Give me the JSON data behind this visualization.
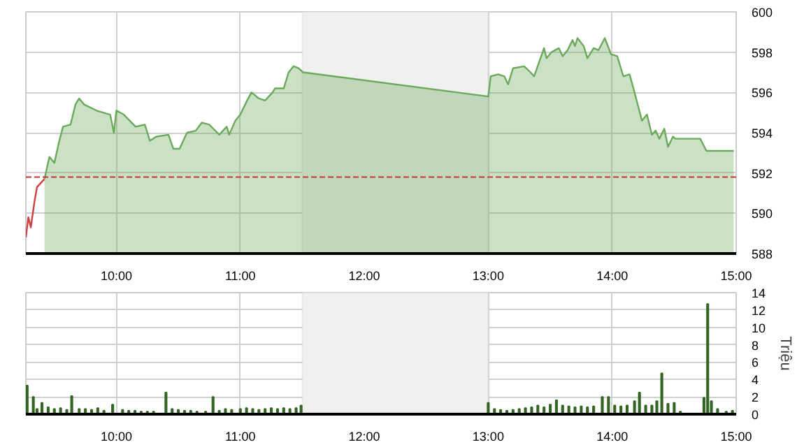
{
  "chart_data": [
    {
      "type": "area",
      "xlim": [
        9.27,
        15.0
      ],
      "ylim": [
        588,
        600
      ],
      "xticks": [
        {
          "value": 10,
          "label": "10:00"
        },
        {
          "value": 11,
          "label": "11:00"
        },
        {
          "value": 12,
          "label": "12:00"
        },
        {
          "value": 13,
          "label": "13:00"
        },
        {
          "value": 14,
          "label": "14:00"
        },
        {
          "value": 15,
          "label": "15:00"
        }
      ],
      "yticks": [
        588,
        590,
        592,
        594,
        596,
        598,
        600
      ],
      "grid": true,
      "bands": [
        {
          "axis": "x",
          "from": 11.5,
          "to": 13.0,
          "color": "#f0f0f0"
        }
      ],
      "ref_lines": [
        {
          "axis": "y",
          "value": 591.8,
          "color": "#cc3333",
          "line_style": "dashed"
        }
      ],
      "series": [
        {
          "type": "line",
          "color": "#d04040",
          "x": [
            9.27,
            9.29,
            9.31,
            9.34,
            9.36,
            9.42
          ],
          "values": [
            588.8,
            589.8,
            589.3,
            590.6,
            591.3,
            591.7
          ]
        },
        {
          "type": "area",
          "color": "#6aaa5a",
          "x": [
            9.42,
            9.46,
            9.5,
            9.54,
            9.57,
            9.63,
            9.67,
            9.7,
            9.74,
            9.84,
            9.95,
            9.98,
            10.0,
            10.06,
            10.155,
            10.23,
            10.27,
            10.32,
            10.42,
            10.46,
            10.51,
            10.57,
            10.64,
            10.69,
            10.75,
            10.83,
            10.89,
            10.91,
            10.96,
            11.0,
            11.055,
            11.09,
            11.15,
            11.2,
            11.26,
            11.28,
            11.35,
            11.39,
            11.43,
            11.47,
            11.505,
            13.0,
            13.02,
            13.08,
            13.13,
            13.16,
            13.2,
            13.29,
            13.34,
            13.37,
            13.41,
            13.45,
            13.47,
            13.51,
            13.57,
            13.6,
            13.64,
            13.68,
            13.7,
            13.72,
            13.77,
            13.8,
            13.85,
            13.89,
            13.94,
            13.99,
            14.04,
            14.09,
            14.14,
            14.18,
            14.24,
            14.28,
            14.32,
            14.35,
            14.38,
            14.42,
            14.45,
            14.49,
            14.51,
            14.71,
            14.76,
            14.98
          ],
          "values": [
            591.7,
            592.8,
            592.5,
            593.6,
            594.3,
            594.4,
            595.4,
            595.7,
            595.4,
            595.1,
            594.9,
            594.0,
            595.1,
            594.9,
            594.3,
            594.4,
            593.6,
            593.8,
            593.9,
            593.2,
            593.2,
            594.0,
            594.1,
            594.5,
            594.4,
            593.9,
            594.3,
            593.9,
            594.6,
            594.9,
            595.6,
            596.0,
            595.7,
            595.6,
            596.0,
            596.2,
            596.2,
            597.0,
            597.3,
            597.2,
            597.0,
            595.8,
            596.8,
            596.9,
            596.8,
            596.4,
            597.2,
            597.3,
            597.0,
            596.8,
            597.5,
            598.2,
            597.7,
            598.0,
            598.2,
            597.8,
            598.1,
            598.6,
            598.3,
            598.7,
            598.3,
            597.7,
            598.2,
            598.1,
            598.7,
            597.9,
            597.8,
            596.8,
            596.9,
            596.0,
            594.6,
            594.9,
            593.9,
            594.1,
            593.7,
            594.2,
            593.3,
            593.8,
            593.7,
            593.7,
            593.1,
            593.1
          ]
        }
      ]
    },
    {
      "type": "bar",
      "ylabel": "Triệu",
      "xlim": [
        9.27,
        15.0
      ],
      "ylim": [
        0,
        14
      ],
      "xticks": [
        {
          "value": 10,
          "label": "10:00"
        },
        {
          "value": 11,
          "label": "11:00"
        },
        {
          "value": 12,
          "label": "12:00"
        },
        {
          "value": 13,
          "label": "13:00"
        },
        {
          "value": 14,
          "label": "14:00"
        },
        {
          "value": 15,
          "label": "15:00"
        }
      ],
      "yticks": [
        0,
        2,
        4,
        6,
        8,
        10,
        12,
        14
      ],
      "grid": true,
      "bands": [
        {
          "axis": "x",
          "from": 11.5,
          "to": 13.0,
          "color": "#f0f0f0"
        }
      ],
      "series": [
        {
          "color": "#336622",
          "x": [
            9.28,
            9.33,
            9.36,
            9.4,
            9.45,
            9.5,
            9.55,
            9.6,
            9.64,
            9.7,
            9.75,
            9.8,
            9.85,
            9.9,
            9.97,
            10.05,
            10.1,
            10.15,
            10.2,
            10.25,
            10.3,
            10.35,
            10.4,
            10.45,
            10.5,
            10.55,
            10.6,
            10.65,
            10.72,
            10.78,
            10.83,
            10.88,
            10.93,
            11.0,
            11.05,
            11.1,
            11.15,
            11.2,
            11.25,
            11.3,
            11.35,
            11.4,
            11.45,
            11.49,
            13.0,
            13.05,
            13.1,
            13.15,
            13.2,
            13.25,
            13.3,
            13.35,
            13.4,
            13.45,
            13.5,
            13.55,
            13.6,
            13.65,
            13.7,
            13.75,
            13.8,
            13.85,
            13.92,
            13.97,
            14.02,
            14.07,
            14.12,
            14.18,
            14.22,
            14.27,
            14.32,
            14.36,
            14.4,
            14.45,
            14.5,
            14.55,
            14.62,
            14.68,
            14.74,
            14.77,
            14.8,
            14.85,
            14.92,
            14.97
          ],
          "values": [
            3.3,
            2.0,
            0.6,
            1.3,
            0.8,
            0.6,
            0.7,
            0.5,
            2.1,
            0.6,
            0.6,
            0.5,
            0.7,
            0.4,
            1.1,
            0.5,
            0.4,
            0.4,
            0.3,
            0.3,
            0.3,
            null,
            2.5,
            0.6,
            0.5,
            0.4,
            0.4,
            0.3,
            0.3,
            2.0,
            0.4,
            0.6,
            0.5,
            0.6,
            0.7,
            0.6,
            0.5,
            0.6,
            0.7,
            0.6,
            0.7,
            0.6,
            0.7,
            1.0,
            1.3,
            0.6,
            0.5,
            0.4,
            0.5,
            0.6,
            0.7,
            0.8,
            1.0,
            0.8,
            1.1,
            1.6,
            1.0,
            0.9,
            0.8,
            0.9,
            0.8,
            0.9,
            2.0,
            2.0,
            1.0,
            0.9,
            1.0,
            1.5,
            2.5,
            1.0,
            1.0,
            1.5,
            4.7,
            1.2,
            1.3,
            0.3,
            null,
            null,
            1.9,
            12.7,
            1.5,
            0.6,
            0.3,
            0.4
          ]
        }
      ]
    }
  ]
}
